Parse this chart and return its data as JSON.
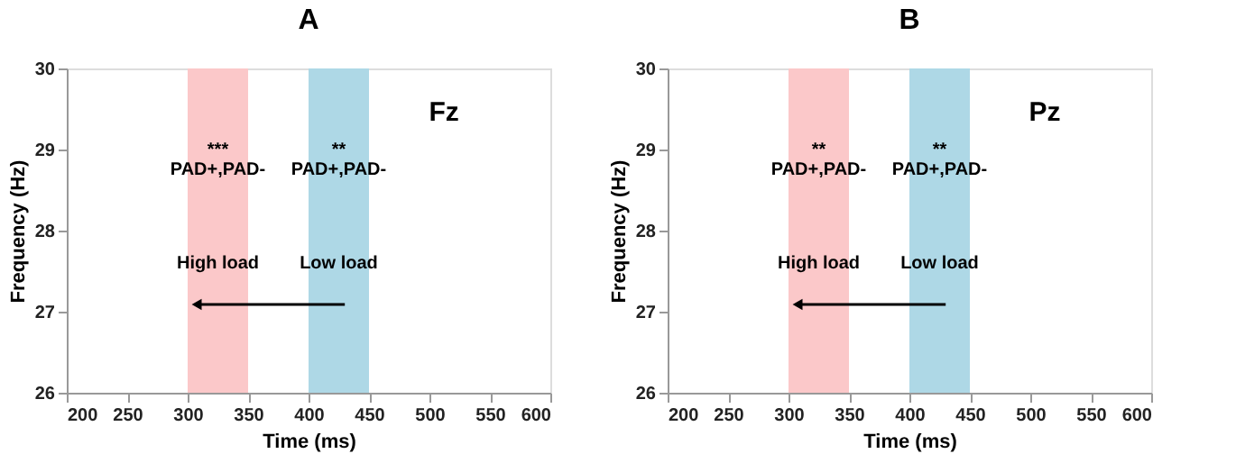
{
  "chart_data": [
    {
      "type": "line",
      "title": "A",
      "xlabel": "Time (ms)",
      "ylabel": "Frequency (Hz)",
      "xlim": [
        200,
        600
      ],
      "xticks": [
        200,
        250,
        300,
        350,
        400,
        450,
        500,
        550,
        600
      ],
      "ylim": [
        26,
        30
      ],
      "yticks": [
        26,
        27,
        28,
        29,
        30
      ],
      "bands": [
        {
          "axis": "x",
          "from": 300,
          "to": 350,
          "color": "#fbc8c9"
        },
        {
          "axis": "x",
          "from": 400,
          "to": 450,
          "color": "#aed8e6"
        }
      ],
      "annotations": [
        "***",
        "PAD+,PAD-",
        "**",
        "PAD+,PAD-",
        "High load",
        "Low load",
        "Fz"
      ]
    },
    {
      "type": "line",
      "title": "B",
      "xlabel": "Time (ms)",
      "ylabel": "Frequency (Hz)",
      "xlim": [
        200,
        600
      ],
      "xticks": [
        200,
        250,
        300,
        350,
        400,
        450,
        500,
        550,
        600
      ],
      "ylim": [
        26,
        30
      ],
      "yticks": [
        26,
        27,
        28,
        29,
        30
      ],
      "bands": [
        {
          "axis": "x",
          "from": 300,
          "to": 350,
          "color": "#fbc8c9"
        },
        {
          "axis": "x",
          "from": 400,
          "to": 450,
          "color": "#aed8e6"
        }
      ],
      "annotations": [
        "**",
        "PAD+,PAD-",
        "**",
        "PAD+,PAD-",
        "High load",
        "Low load",
        "Pz"
      ]
    }
  ]
}
